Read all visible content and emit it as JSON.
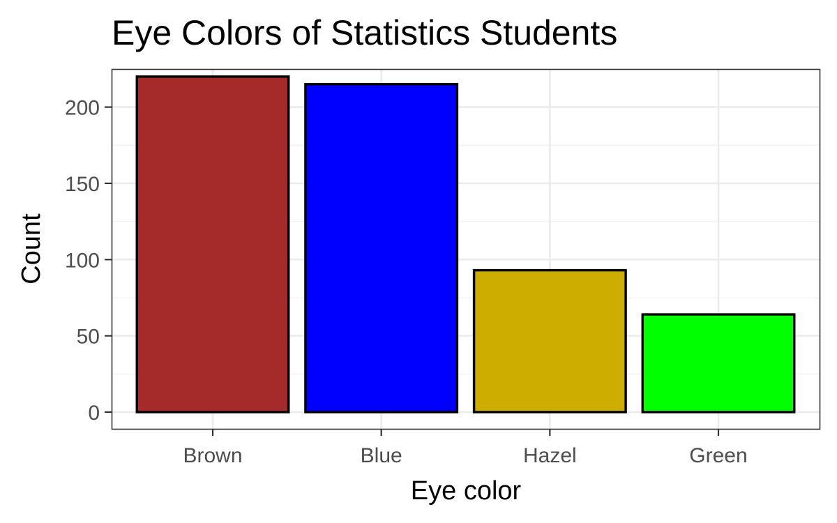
{
  "chart_data": {
    "type": "bar",
    "title": "Eye Colors of Statistics Students",
    "xlabel": "Eye color",
    "ylabel": "Count",
    "categories": [
      "Brown",
      "Blue",
      "Hazel",
      "Green"
    ],
    "values": [
      220,
      215,
      93,
      64
    ],
    "colors": [
      "#a52a2a",
      "#0000ff",
      "#cdad00",
      "#00ff00"
    ],
    "ylim": [
      -11,
      224.5
    ],
    "yticks": [
      0,
      50,
      100,
      150,
      200
    ],
    "grid": true,
    "legend": "none"
  }
}
